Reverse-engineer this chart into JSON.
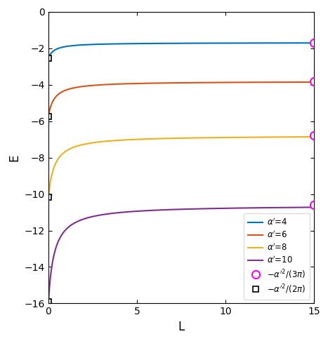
{
  "xlabel": "L",
  "ylabel": "E",
  "xlim": [
    0,
    15
  ],
  "ylim": [
    -16,
    0
  ],
  "alpha_values": [
    4,
    6,
    8,
    10
  ],
  "line_colors": [
    "#0072bd",
    "#d95319",
    "#edb120",
    "#7e2f8e"
  ],
  "marker_circle_color": "#ff00ff",
  "marker_square_color": "#000000",
  "yticks": [
    0,
    -2,
    -4,
    -6,
    -8,
    -10,
    -12,
    -14,
    -16
  ],
  "xticks": [
    0,
    5,
    10,
    15
  ],
  "figsize": [
    4.67,
    4.86
  ],
  "dpi": 100,
  "curve_k": 3.0
}
